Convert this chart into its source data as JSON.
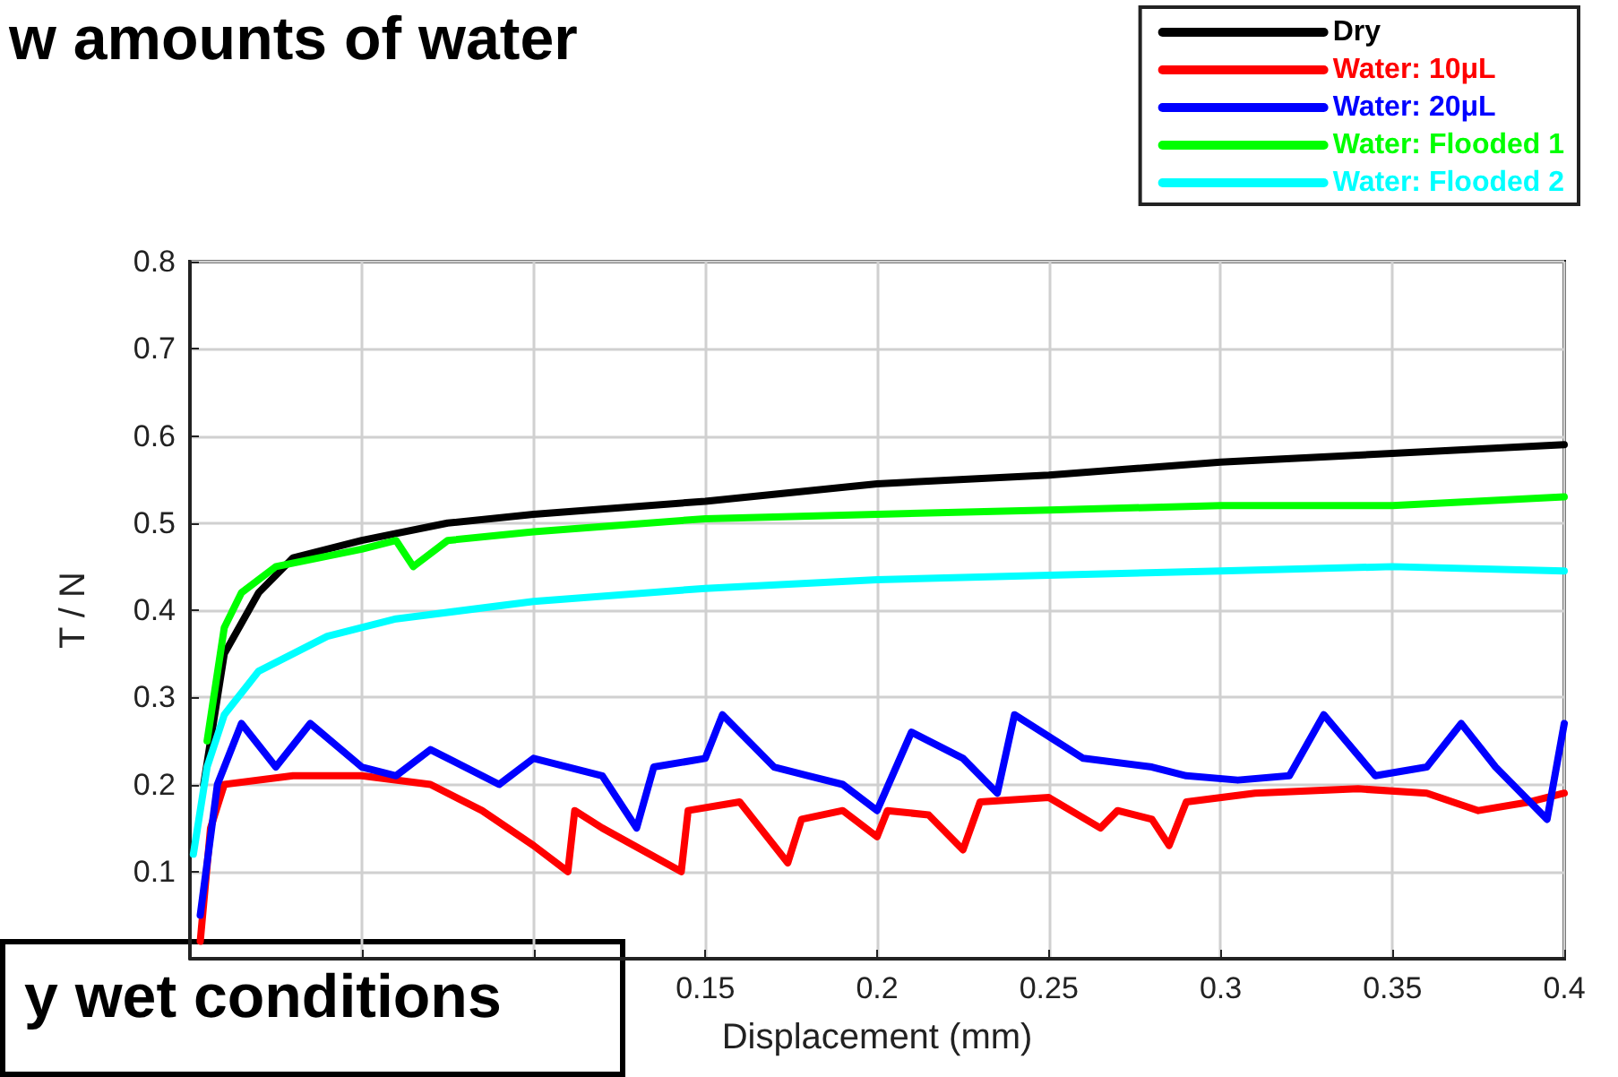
{
  "chart_data": {
    "type": "line",
    "title": "w amounts of water",
    "xlabel": "Displacement (mm)",
    "ylabel": "T / N",
    "annotations": [
      "y wet conditions"
    ],
    "xlim": [
      0,
      0.4
    ],
    "ylim": [
      0,
      0.8
    ],
    "xticks": [
      {
        "value": 0,
        "label": null
      },
      {
        "value": 0.05,
        "label": null
      },
      {
        "value": 0.1,
        "label": null
      },
      0.15,
      0.2,
      0.25,
      0.3,
      0.35,
      0.4
    ],
    "yticks": [
      {
        "value": 0,
        "label": null
      },
      0.1,
      0.2,
      0.3,
      0.4,
      0.5,
      0.6,
      0.7,
      0.8
    ],
    "grid": true,
    "legend": "top right",
    "marker": "none",
    "line_style": "solid",
    "series": [
      {
        "name": "Dry",
        "color": "#000000",
        "x": [
          0.004,
          0.01,
          0.02,
          0.03,
          0.05,
          0.075,
          0.1,
          0.15,
          0.2,
          0.25,
          0.3,
          0.35,
          0.4
        ],
        "values": [
          0.2,
          0.35,
          0.42,
          0.46,
          0.48,
          0.5,
          0.51,
          0.525,
          0.545,
          0.555,
          0.57,
          0.58,
          0.59
        ]
      },
      {
        "name": "Water: 10μL",
        "color": "#ff0000",
        "x": [
          0.003,
          0.006,
          0.01,
          0.03,
          0.05,
          0.07,
          0.085,
          0.1,
          0.11,
          0.112,
          0.12,
          0.143,
          0.145,
          0.16,
          0.174,
          0.178,
          0.19,
          0.2,
          0.203,
          0.215,
          0.225,
          0.23,
          0.25,
          0.265,
          0.27,
          0.28,
          0.285,
          0.29,
          0.31,
          0.34,
          0.36,
          0.375,
          0.39,
          0.4
        ],
        "values": [
          0.02,
          0.15,
          0.2,
          0.21,
          0.21,
          0.2,
          0.17,
          0.13,
          0.1,
          0.17,
          0.15,
          0.1,
          0.17,
          0.18,
          0.11,
          0.16,
          0.17,
          0.14,
          0.17,
          0.165,
          0.125,
          0.18,
          0.185,
          0.15,
          0.17,
          0.16,
          0.13,
          0.18,
          0.19,
          0.195,
          0.19,
          0.17,
          0.18,
          0.19
        ]
      },
      {
        "name": "Water: 20μL",
        "color": "#0000ff",
        "x": [
          0.003,
          0.008,
          0.015,
          0.025,
          0.035,
          0.05,
          0.06,
          0.07,
          0.09,
          0.1,
          0.12,
          0.13,
          0.135,
          0.15,
          0.155,
          0.17,
          0.18,
          0.19,
          0.2,
          0.21,
          0.225,
          0.235,
          0.24,
          0.26,
          0.28,
          0.29,
          0.305,
          0.32,
          0.33,
          0.345,
          0.36,
          0.37,
          0.38,
          0.395,
          0.4
        ],
        "values": [
          0.05,
          0.2,
          0.27,
          0.22,
          0.27,
          0.22,
          0.21,
          0.24,
          0.2,
          0.23,
          0.21,
          0.15,
          0.22,
          0.23,
          0.28,
          0.22,
          0.21,
          0.2,
          0.17,
          0.26,
          0.23,
          0.19,
          0.28,
          0.23,
          0.22,
          0.21,
          0.205,
          0.21,
          0.28,
          0.21,
          0.22,
          0.27,
          0.22,
          0.16,
          0.27
        ]
      },
      {
        "name": "Water: Flooded 1",
        "color": "#00ff00",
        "x": [
          0.005,
          0.01,
          0.015,
          0.025,
          0.05,
          0.06,
          0.065,
          0.075,
          0.1,
          0.15,
          0.2,
          0.25,
          0.3,
          0.35,
          0.4
        ],
        "values": [
          0.25,
          0.38,
          0.42,
          0.45,
          0.47,
          0.48,
          0.45,
          0.48,
          0.49,
          0.505,
          0.51,
          0.515,
          0.52,
          0.52,
          0.53
        ]
      },
      {
        "name": "Water: Flooded 2",
        "color": "#00ffff",
        "x": [
          0.001,
          0.005,
          0.01,
          0.02,
          0.04,
          0.06,
          0.1,
          0.15,
          0.2,
          0.25,
          0.3,
          0.35,
          0.4
        ],
        "values": [
          0.12,
          0.22,
          0.28,
          0.33,
          0.37,
          0.39,
          0.41,
          0.425,
          0.435,
          0.44,
          0.445,
          0.45,
          0.445
        ]
      }
    ]
  }
}
